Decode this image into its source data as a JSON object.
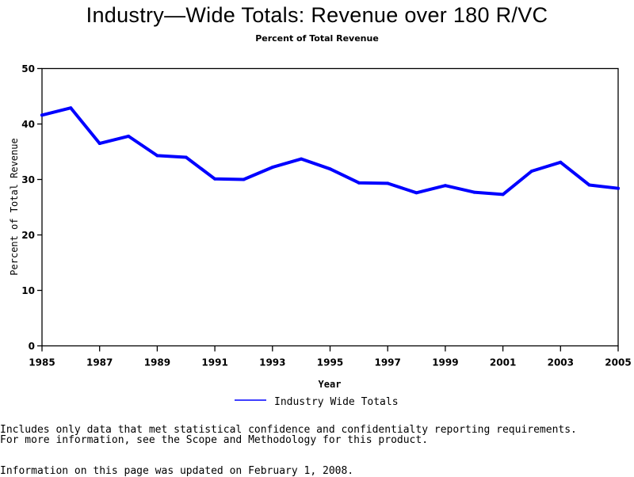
{
  "chart_data": {
    "type": "line",
    "title": "Industry—Wide Totals: Revenue over 180 R/VC",
    "subtitle": "Percent of Total Revenue",
    "xlabel": "Year",
    "ylabel": "Percent of Total Revenue",
    "xlim": [
      1985,
      2005
    ],
    "ylim": [
      0,
      50
    ],
    "grid": false,
    "x_ticks": [
      "1985",
      "1987",
      "1989",
      "1991",
      "1993",
      "1995",
      "1997",
      "1999",
      "2001",
      "2003",
      "2005"
    ],
    "y_ticks": [
      "0",
      "10",
      "20",
      "30",
      "40",
      "50"
    ],
    "legend_placement": "bottom-center",
    "series": [
      {
        "name": "Industry Wide Totals",
        "color": "#0000ff",
        "x": [
          1985,
          1986,
          1987,
          1988,
          1989,
          1990,
          1991,
          1992,
          1993,
          1994,
          1995,
          1996,
          1997,
          1998,
          1999,
          2000,
          2001,
          2002,
          2003,
          2004,
          2005
        ],
        "values": [
          41.6,
          42.9,
          36.5,
          37.8,
          34.3,
          34.0,
          30.1,
          30.0,
          32.2,
          33.7,
          31.9,
          29.4,
          29.3,
          27.6,
          28.9,
          27.7,
          27.3,
          31.5,
          33.1,
          29.0,
          28.4
        ]
      }
    ]
  },
  "notes": {
    "line1": "Includes only data that met statistical confidence and confidentialty reporting requirements.",
    "line2": "For more information, see the Scope and Methodology for this product.",
    "updated": "Information on this page was updated on February 1, 2008."
  }
}
